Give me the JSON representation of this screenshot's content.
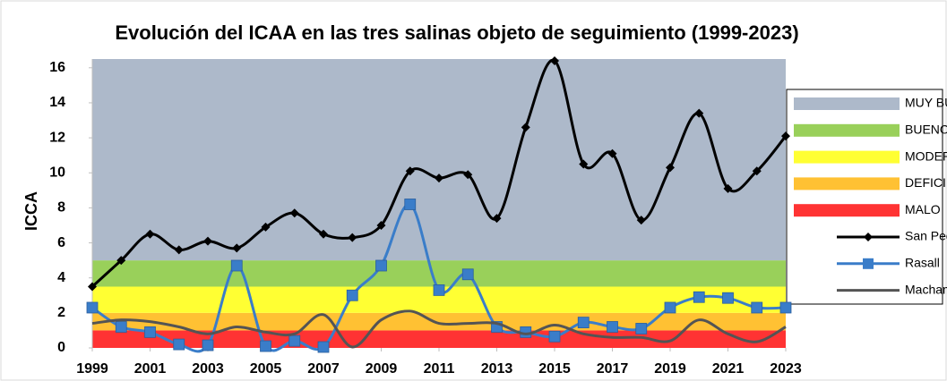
{
  "chart_data": {
    "type": "line",
    "title": "Evolución del ICAA en las tres salinas objeto de seguimiento (1999-2023)",
    "y_label": "ICCA",
    "x": [
      1999,
      2000,
      2001,
      2002,
      2003,
      2004,
      2005,
      2006,
      2007,
      2008,
      2009,
      2010,
      2011,
      2012,
      2013,
      2014,
      2015,
      2016,
      2017,
      2018,
      2019,
      2020,
      2021,
      2022,
      2023
    ],
    "xlim": [
      1999,
      2023
    ],
    "xticks": [
      1999,
      2001,
      2003,
      2005,
      2007,
      2009,
      2011,
      2013,
      2015,
      2017,
      2019,
      2021,
      2023
    ],
    "ylim": [
      0,
      16.5
    ],
    "yticks": [
      0,
      2,
      4,
      6,
      8,
      10,
      12,
      14,
      16
    ],
    "bands": [
      {
        "name": "MALO",
        "color": "#ff3333",
        "value": 1
      },
      {
        "name": "DEFICIENTE",
        "color": "#ffc133",
        "value": 1
      },
      {
        "name": "MODERADO",
        "color": "#ffff33",
        "value": 1.5
      },
      {
        "name": "BUENO",
        "color": "#99d05a",
        "value": 1.5
      },
      {
        "name": "MUY BUENO",
        "color": "#adb9ca",
        "value": 11.5
      }
    ],
    "series": [
      {
        "name": "San Pedro",
        "color": "#000000",
        "marker": "diamond",
        "values": [
          3.5,
          5.0,
          6.5,
          5.6,
          6.1,
          5.7,
          6.9,
          7.7,
          6.5,
          6.3,
          7.0,
          10.1,
          9.7,
          9.9,
          7.4,
          12.6,
          16.4,
          10.5,
          11.1,
          7.3,
          10.3,
          13.4,
          9.1,
          10.1,
          12.1
        ]
      },
      {
        "name": "Rasall",
        "color": "#3a7dc9",
        "marker": "square",
        "values": [
          2.3,
          1.2,
          0.9,
          0.2,
          0.15,
          4.7,
          0.1,
          0.4,
          0.05,
          3.0,
          4.7,
          8.2,
          3.3,
          4.2,
          1.2,
          0.9,
          0.65,
          1.45,
          1.2,
          1.1,
          2.3,
          2.9,
          2.85,
          2.3,
          2.3
        ]
      },
      {
        "name": "Machamalo",
        "color": "#545454",
        "marker": "none",
        "values": [
          1.4,
          1.6,
          1.5,
          1.2,
          0.8,
          1.2,
          0.9,
          0.8,
          1.9,
          0.05,
          1.6,
          2.1,
          1.4,
          1.4,
          1.4,
          0.8,
          1.3,
          0.8,
          0.6,
          0.6,
          0.4,
          1.6,
          0.8,
          0.35,
          1.2
        ]
      }
    ]
  }
}
